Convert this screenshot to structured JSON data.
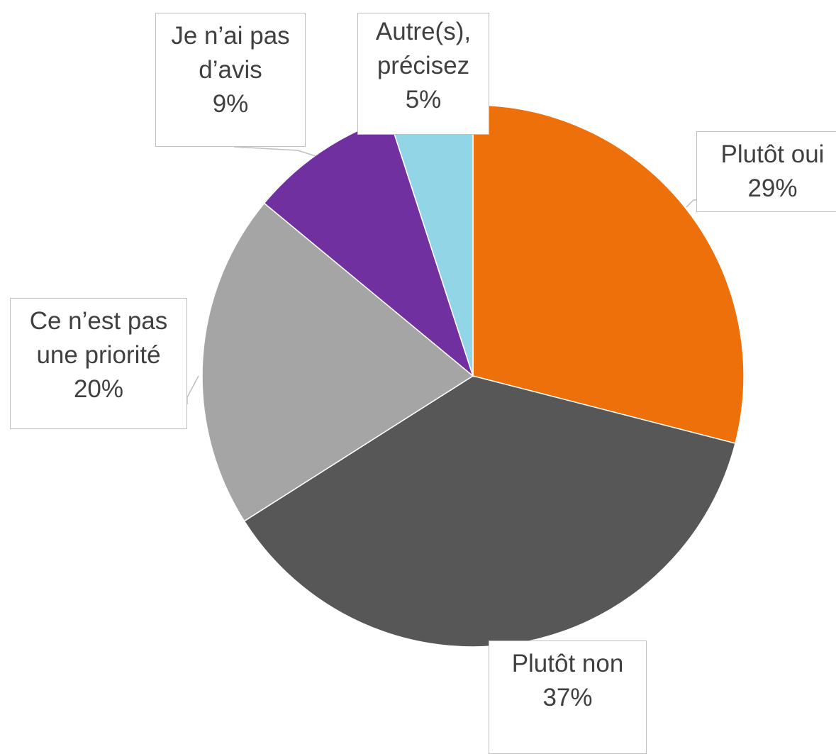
{
  "chart_data": {
    "type": "pie",
    "categories": [
      "Plutôt oui",
      "Plutôt non",
      "Ce n’est pas une priorité",
      "Je n’ai pas d’avis",
      "Autre(s), précisez"
    ],
    "values": [
      29,
      37,
      20,
      9,
      5
    ],
    "value_labels": [
      "29%",
      "37%",
      "20%",
      "9%",
      "5%"
    ],
    "colors": [
      "#ED700A",
      "#575757",
      "#A5A5A5",
      "#7030A0",
      "#92D5E6"
    ]
  }
}
